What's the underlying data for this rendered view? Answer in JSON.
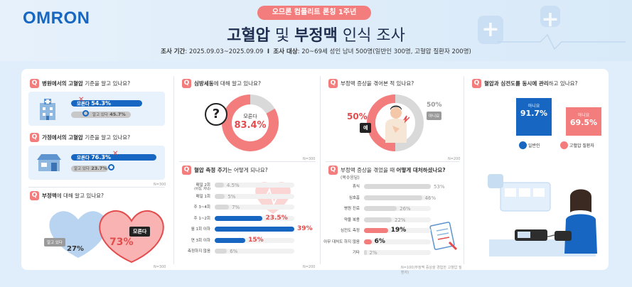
{
  "header": {
    "logo": "OMRON",
    "pill": "오므론 컴플리트 론칭 1주년",
    "title_a": "고혈압",
    "title_b": " 및 ",
    "title_c": "부정맥",
    "title_d": " 인식 조사",
    "period_label": "조사 기간",
    "period_value": ": 2025.09.03~2025.09.09",
    "sep": "I",
    "target_label": "조사 대상",
    "target_value": ": 20~69세 성인 남녀 500명(일반인 300명, 고혈압 질환자 200명)"
  },
  "q1": {
    "badge": "Q",
    "text_b": "병원에서의 고혈압",
    "text_r": " 기준을 알고 있나요?",
    "bar1_label": "모른다",
    "bar1_value": "54.3%",
    "bar2_label": "알고 있다",
    "bar2_value": "45.7%"
  },
  "q2": {
    "badge": "Q",
    "text_b": "가정에서의 고혈압",
    "text_r": " 기준을 알고 있나요?",
    "bar1_label": "모른다",
    "bar1_value": "76.3%",
    "bar2_label": "알고 있다",
    "bar2_value": "23.7%",
    "note": "N=300"
  },
  "q3": {
    "badge": "Q",
    "text_b": "부정맥",
    "text_r": "에 대해 알고 있나요?",
    "know_label": "알고 있다",
    "know_value": "27%",
    "dont_label": "모른다",
    "dont_value": "73%",
    "note": "N=300"
  },
  "q4": {
    "badge": "Q",
    "text_b": "심방세동",
    "text_r": "에 대해 알고 있나요?",
    "center_label": "모른다",
    "center_value": "83.4%",
    "qmark": "?",
    "note": "N=300"
  },
  "q5": {
    "badge": "Q",
    "text_b": "혈압 측정 주기",
    "text_r": "는 어떻게 되나요?",
    "note": "N=200"
  },
  "q6": {
    "badge": "Q",
    "text_r": "부정맥 증상을 겪어본 적 있나요?",
    "yes_label": "예",
    "yes_value": "50%",
    "no_label": "아니요",
    "no_value": "50%",
    "note": "N=200"
  },
  "q7": {
    "badge": "Q",
    "text_r": "부정맥 증상을 겪었을 때 ",
    "text_b": "어떻게 대처하셨나요?",
    "sub": "(복수응답)",
    "note": "N=100(부정맥 증상을 경험한 고혈압 질환자)"
  },
  "q8": {
    "badge": "Q",
    "text_b": "혈압과 심전도를 동시에 관리",
    "text_r": "하고 있나요?",
    "bar1_label": "아니요",
    "bar1_value": "91.7%",
    "bar2_label": "아니요",
    "bar2_value": "69.5%",
    "legend1": "일반인",
    "legend2": "고혈압 질환자"
  },
  "colors": {
    "brand_blue": "#1767c2",
    "accent_red": "#f37c7c",
    "strong_red": "#e34c4c",
    "grey": "#d9d9d9"
  },
  "chart_data": [
    {
      "type": "bar",
      "title": "병원에서의 고혈압 기준을 알고 있나요?",
      "categories": [
        "모른다",
        "알고 있다"
      ],
      "values": [
        54.3,
        45.7
      ]
    },
    {
      "type": "bar",
      "title": "가정에서의 고혈압 기준을 알고 있나요?",
      "categories": [
        "모른다",
        "알고 있다"
      ],
      "values": [
        76.3,
        23.7
      ]
    },
    {
      "type": "pie",
      "title": "부정맥에 대해 알고 있나요?",
      "categories": [
        "알고 있다",
        "모른다"
      ],
      "values": [
        27,
        73
      ]
    },
    {
      "type": "pie",
      "title": "심방세동에 대해 알고 있나요?",
      "categories": [
        "모른다",
        ""
      ],
      "values": [
        83.4,
        16.6
      ]
    },
    {
      "type": "bar",
      "title": "혈압 측정 주기는 어떻게 되나요?",
      "categories": [
        "매일 2회\n(아침, 저녁)",
        "매일 1회",
        "주 3~4회",
        "주 1~2회",
        "월 1회 이하",
        "연 3회 이하",
        "측정하지 않음"
      ],
      "values": [
        4.5,
        5,
        7,
        23.5,
        39,
        15,
        6
      ],
      "value_labels": [
        "4.5%",
        "5%",
        "7%",
        "23.5%",
        "39%",
        "15%",
        "6%"
      ]
    },
    {
      "type": "pie",
      "title": "부정맥 증상을 겪어본 적 있나요?",
      "categories": [
        "예",
        "아니요"
      ],
      "values": [
        50,
        50
      ]
    },
    {
      "type": "bar",
      "title": "부정맥 증상을 겪었을 때 어떻게 대처하셨나요?",
      "categories": [
        "휴식",
        "심호흡",
        "병원 진료",
        "약물 복용",
        "심전도 측정",
        "아무 대처도 하지 않음",
        "기타"
      ],
      "values": [
        53,
        46,
        26,
        22,
        19,
        6,
        2
      ],
      "value_labels": [
        "53%",
        "46%",
        "26%",
        "22%",
        "19%",
        "6%",
        "2%"
      ]
    },
    {
      "type": "bar",
      "title": "혈압과 심전도를 동시에 관리하고 있나요?",
      "categories": [
        "일반인",
        "고혈압 질환자"
      ],
      "series": [
        {
          "name": "아니요",
          "values": [
            91.7,
            69.5
          ]
        }
      ]
    }
  ]
}
